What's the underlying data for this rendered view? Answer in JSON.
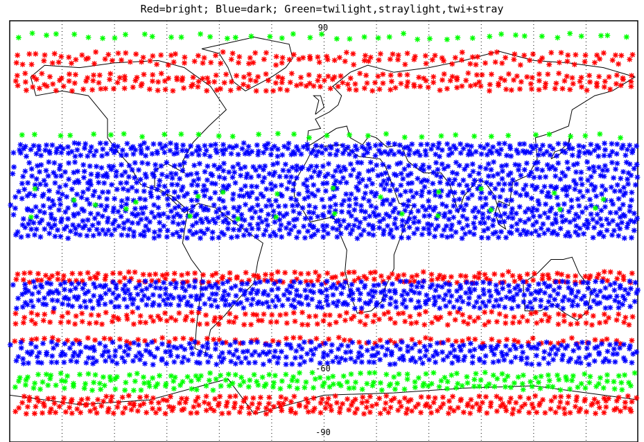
{
  "title": "Red=bright; Blue=dark; Green=twilight,straylight,twi+stray",
  "legend": {
    "red_label": "bright",
    "blue_label": "dark",
    "green_label": "twilight,straylight,twi+stray"
  },
  "colors": {
    "bright": "#ff0000",
    "dark": "#0000ff",
    "twilight": "#00ff00",
    "coast": "#000000",
    "grid": "#000000"
  },
  "map": {
    "projection": "cylindrical",
    "lon_range": [
      -180,
      180
    ],
    "lat_range": [
      -90,
      90
    ],
    "grid": true,
    "meridian_step_deg": 30,
    "marker": "asterisk"
  },
  "latitude_labels": {
    "top": "90",
    "mid": "-60",
    "bottom": "-90"
  },
  "chart_data": {
    "type": "scatter",
    "title": "Red=bright; Blue=dark; Green=twilight,straylight,twi+stray",
    "series": [
      {
        "name": "bright",
        "color": "#ff0000",
        "lat_bands": [
          [
            71,
            76
          ],
          [
            60,
            68
          ],
          [
            -17,
            -22
          ],
          [
            -34,
            -40
          ],
          [
            -45,
            -48
          ],
          [
            -70,
            -78
          ]
        ],
        "density": "dense"
      },
      {
        "name": "dark",
        "color": "#0000ff",
        "lat_bands": [
          [
            32,
            38
          ],
          [
            13,
            30
          ],
          [
            -3,
            12
          ],
          [
            -21,
            -34
          ],
          [
            -47,
            -57
          ]
        ],
        "density": "dense"
      },
      {
        "name": "twilight,straylight,twi+stray",
        "color": "#00ff00",
        "lat_bands": [
          [
            82,
            85
          ],
          [
            40,
            42
          ],
          [
            -60,
            -68
          ]
        ],
        "density": "sparse-to-dense"
      }
    ]
  }
}
